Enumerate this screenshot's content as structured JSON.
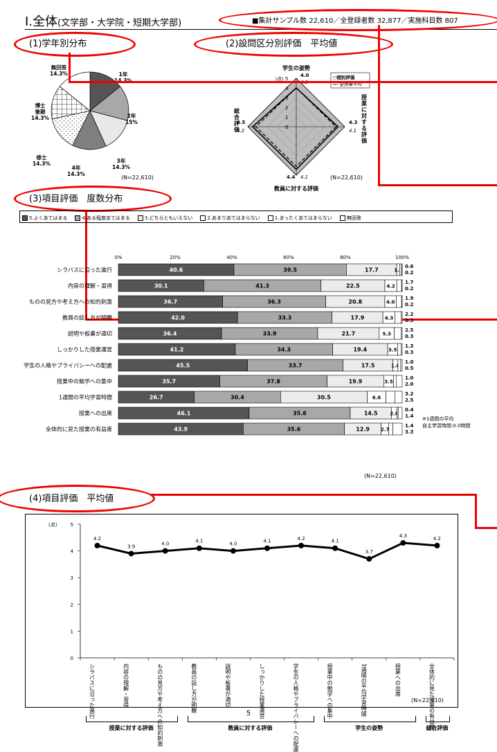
{
  "header": {
    "title": "Ⅰ.全体",
    "subtitle": "(文学部・大学院・短期大学部)",
    "stats": "■集計サンプル数 22,610／全登録者数 32,877／実施科目数 807"
  },
  "sec1": {
    "title": "(1)学年別分布",
    "n_label": "(N=22,610)",
    "chart_data": {
      "type": "pie",
      "categories": [
        "1年",
        "2年",
        "3年",
        "4年",
        "修士",
        "博士後期",
        "無回答"
      ],
      "labels": [
        "1年\n14.3%",
        "2年\n15%",
        "3年\n14.3%",
        "4年\n14.3%",
        "修士\n14.3%",
        "博士\n後期\n14.3%",
        "無回答\n14.3%"
      ],
      "values": [
        14.3,
        15,
        14.3,
        14.3,
        14.3,
        14.3,
        14.3
      ],
      "colors": [
        "#555555",
        "#a8a8a8",
        "#e8e8e8",
        "#7f7f7f",
        "#ffffff",
        "#ffffff",
        "#ffffff"
      ]
    }
  },
  "sec2": {
    "title": "(2)設問区分別評価　平均値",
    "n_label": "(N=22,610)",
    "unit_label": "(点)",
    "legend": [
      "◻個別評価",
      "全授業平均"
    ],
    "chart_data": {
      "type": "radar",
      "axes": [
        "学生の姿勢",
        "授業に対する評価",
        "教員に対する評価",
        "総合評価"
      ],
      "ticks": [
        "5",
        "4",
        "3",
        "2",
        "1",
        "0"
      ],
      "ylim": [
        0,
        5
      ],
      "series": [
        {
          "name": "個別評価",
          "values": [
            4.0,
            4.3,
            4.4,
            4.5
          ]
        },
        {
          "name": "全授業平均",
          "values": [
            4.0,
            4.1,
            4.1,
            4.2
          ]
        }
      ]
    }
  },
  "sec3": {
    "title": "(3)項目評価　度数分布",
    "n_label": "(N=22,610)",
    "note": "※1週間の平均\n自主学習時間:0.0時間",
    "chart_data": {
      "type": "bar",
      "legend": [
        "5.よくあてはまる",
        "4.ある程度あてはまる",
        "3.どちらともいえない",
        "2.あまりあてはまらない",
        "1.まったくあてはまらない",
        "無回答"
      ],
      "colors": [
        "#555555",
        "#a8a8a8",
        "#ececec",
        "#ffffff",
        "#ffffff",
        "#ffffff"
      ],
      "ticks": [
        "0%",
        "20%",
        "40%",
        "60%",
        "80%",
        "100%"
      ],
      "categories": [
        "シラバスに沿った進行",
        "内容の理解・習得",
        "ものの見方や考え方への知的刺激",
        "教員の話し方が明瞭",
        "説明や板書が適切",
        "しっかりした授業運営",
        "学生の人格やプライバシーへの配慮",
        "授業中の勉学への集中",
        "1週間の平均学習時間",
        "授業への出席",
        "全体的に見た授業の有益度"
      ],
      "series": [
        {
          "values": [
            40.6,
            30.1,
            36.7,
            42.0,
            36.4,
            41.2,
            45.5,
            35.7,
            26.7,
            46.1,
            43.9
          ]
        },
        {
          "values": [
            39.5,
            41.3,
            36.3,
            33.3,
            33.9,
            34.3,
            33.7,
            37.8,
            30.4,
            35.6,
            35.6
          ]
        },
        {
          "values": [
            17.7,
            22.5,
            20.8,
            17.9,
            21.7,
            19.4,
            17.5,
            19.9,
            30.5,
            14.5,
            12.9
          ]
        },
        {
          "values": [
            1.1,
            4.2,
            4.0,
            4.3,
            5.3,
            3.5,
            1.8,
            3.5,
            6.6,
            2.0,
            2.7
          ]
        },
        {
          "values": [
            0.6,
            1.7,
            1.9,
            2.2,
            2.5,
            1.3,
            1.0,
            1.0,
            3.2,
            0.4,
            1.4
          ]
        },
        {
          "values": [
            0.2,
            0.2,
            0.2,
            0.3,
            0.3,
            0.3,
            0.5,
            2.0,
            2.5,
            1.4,
            3.3
          ]
        }
      ],
      "labels": [
        [
          "40.6",
          "39.5",
          "17.7",
          "1.1",
          "0.6",
          "0.2"
        ],
        [
          "30.1",
          "41.3",
          "22.5",
          "4.2",
          "1.7",
          "0.2"
        ],
        [
          "36.7",
          "36.3",
          "20.8",
          "4.0",
          "1.9",
          "0.2"
        ],
        [
          "42.0",
          "33.3",
          "17.9",
          "4.3",
          "2.2",
          "0.3"
        ],
        [
          "36.4",
          "33.9",
          "21.7",
          "5.3",
          "2.5",
          "0.3"
        ],
        [
          "41.2",
          "34.3",
          "19.4",
          "3.5",
          "1.3",
          "0.3"
        ],
        [
          "45.5",
          "33.7",
          "17.5",
          "1.8",
          "1.0",
          "0.5"
        ],
        [
          "35.7",
          "37.8",
          "19.9",
          "3.5",
          "1.0",
          "2.0"
        ],
        [
          "26.7",
          "30.4",
          "30.5",
          "6.6",
          "3.2",
          "2.5"
        ],
        [
          "46.1",
          "35.6",
          "14.5",
          "2.0",
          "0.4",
          "1.4"
        ],
        [
          "43.9",
          "35.6",
          "12.9",
          "2.7",
          "1.4",
          "3.3"
        ]
      ]
    }
  },
  "sec4": {
    "title": "(4)項目評価　平均値",
    "n_label": "(N=22,610)",
    "unit_label": "(点)",
    "chart_data": {
      "type": "line",
      "yticks": [
        "5",
        "4",
        "3",
        "2",
        "1",
        "0"
      ],
      "ylim": [
        0,
        5
      ],
      "categories": [
        "シラバスに沿った進行",
        "内容の理解・習得",
        "ものの見方や考え方への知的刺激",
        "教員の話し方が明瞭",
        "説明や板書が適切",
        "しっかりした授業運営",
        "学生の人格やプライバシーへの配慮",
        "授業中の勉学への集中",
        "1週間の平均学習時間",
        "授業への出席",
        "全体的に見た授業の有益度"
      ],
      "values": [
        4.2,
        3.9,
        4.0,
        4.1,
        4.0,
        4.1,
        4.2,
        4.1,
        3.7,
        4.3,
        4.2
      ],
      "value_labels": [
        "4.2",
        "3.9",
        "4.0",
        "4.1",
        "4.0",
        "4.1",
        "4.2",
        "4.1",
        "3.7",
        "4.3",
        "4.2"
      ],
      "groups": [
        "授業に対する評価",
        "教員に対する評価",
        "学生の姿勢",
        "総合評価"
      ]
    }
  },
  "footer": {
    "page_number": "5"
  }
}
